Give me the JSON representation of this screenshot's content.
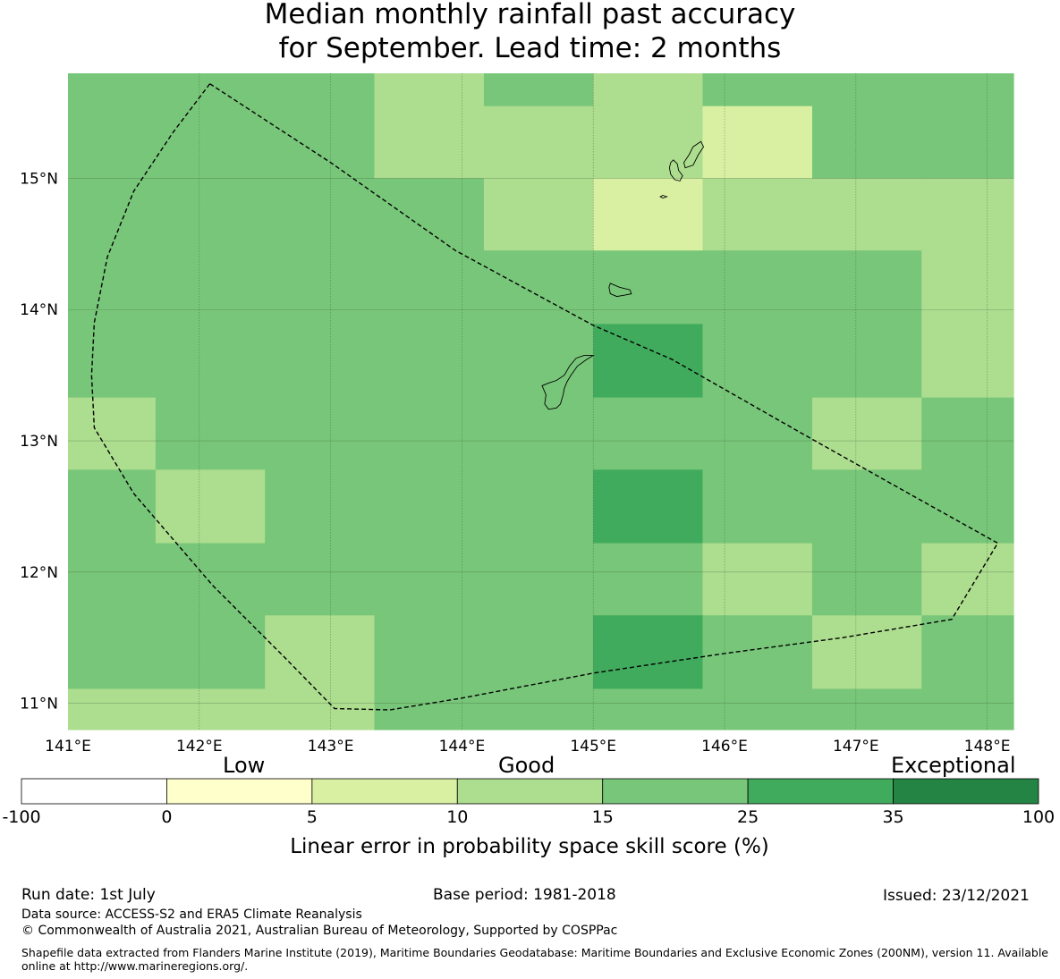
{
  "title": {
    "line1": "Median monthly rainfall past accuracy",
    "line2": "for September. Lead time: 2 months"
  },
  "map": {
    "lon_range": [
      141.0,
      148.2
    ],
    "lat_range": [
      10.8,
      15.8
    ],
    "lon_ticks": [
      {
        "value": 141,
        "label": "141°E"
      },
      {
        "value": 142,
        "label": "142°E"
      },
      {
        "value": 143,
        "label": "143°E"
      },
      {
        "value": 144,
        "label": "144°E"
      },
      {
        "value": 145,
        "label": "145°E"
      },
      {
        "value": 146,
        "label": "146°E"
      },
      {
        "value": 147,
        "label": "147°E"
      },
      {
        "value": 148,
        "label": "148°E"
      }
    ],
    "lat_ticks": [
      {
        "value": 15,
        "label": "15°N"
      },
      {
        "value": 14,
        "label": "14°N"
      },
      {
        "value": 13,
        "label": "13°N"
      },
      {
        "value": 12,
        "label": "12°N"
      },
      {
        "value": 11,
        "label": "11°N"
      }
    ],
    "cell_colors": {
      "c1": "#d9f0a3",
      "c2": "#addd8e",
      "c3": "#78c679",
      "c4": "#41ab5d"
    },
    "grid_lon_edges": [
      141.0,
      141.667,
      142.5,
      143.333,
      144.167,
      145.0,
      145.833,
      146.667,
      147.5,
      148.2
    ],
    "grid_rows": [
      {
        "lat_top": 15.8,
        "lat_bottom": 15.55,
        "cells": [
          "c3",
          "c3",
          "c3",
          "c2",
          "c3",
          "c2",
          "c3",
          "c3",
          "c3"
        ]
      },
      {
        "lat_top": 15.55,
        "lat_bottom": 15.0,
        "cells": [
          "c3",
          "c3",
          "c3",
          "c2",
          "c2",
          "c2",
          "c1",
          "c3",
          "c3"
        ]
      },
      {
        "lat_top": 15.0,
        "lat_bottom": 14.45,
        "cells": [
          "c3",
          "c3",
          "c3",
          "c3",
          "c2",
          "c1",
          "c2",
          "c2",
          "c2"
        ]
      },
      {
        "lat_top": 14.45,
        "lat_bottom": 13.89,
        "cells": [
          "c3",
          "c3",
          "c3",
          "c3",
          "c3",
          "c3",
          "c3",
          "c3",
          "c2"
        ]
      },
      {
        "lat_top": 13.89,
        "lat_bottom": 13.33,
        "cells": [
          "c3",
          "c3",
          "c3",
          "c3",
          "c3",
          "c4",
          "c3",
          "c3",
          "c2"
        ]
      },
      {
        "lat_top": 13.33,
        "lat_bottom": 12.78,
        "cells": [
          "c2",
          "c3",
          "c3",
          "c3",
          "c3",
          "c3",
          "c3",
          "c2",
          "c3"
        ]
      },
      {
        "lat_top": 12.78,
        "lat_bottom": 12.22,
        "cells": [
          "c3",
          "c2",
          "c3",
          "c3",
          "c3",
          "c4",
          "c3",
          "c3",
          "c3"
        ]
      },
      {
        "lat_top": 12.22,
        "lat_bottom": 11.67,
        "cells": [
          "c3",
          "c3",
          "c3",
          "c3",
          "c3",
          "c3",
          "c2",
          "c3",
          "c2"
        ]
      },
      {
        "lat_top": 11.67,
        "lat_bottom": 11.11,
        "cells": [
          "c3",
          "c3",
          "c2",
          "c3",
          "c3",
          "c4",
          "c3",
          "c2",
          "c3"
        ]
      },
      {
        "lat_top": 11.11,
        "lat_bottom": 10.8,
        "cells": [
          "c2",
          "c2",
          "c2",
          "c3",
          "c3",
          "c3",
          "c3",
          "c3",
          "c3"
        ]
      }
    ],
    "eez_boundary": [
      [
        142.08,
        15.72
      ],
      [
        143.0,
        15.12
      ],
      [
        143.95,
        14.45
      ],
      [
        145.0,
        13.88
      ],
      [
        145.6,
        13.62
      ],
      [
        146.6,
        13.05
      ],
      [
        147.4,
        12.6
      ],
      [
        148.08,
        12.22
      ],
      [
        147.73,
        11.64
      ],
      [
        146.9,
        11.5
      ],
      [
        146.0,
        11.38
      ],
      [
        145.0,
        11.23
      ],
      [
        144.0,
        11.04
      ],
      [
        143.45,
        10.95
      ],
      [
        143.03,
        10.96
      ],
      [
        142.65,
        11.35
      ],
      [
        142.1,
        11.9
      ],
      [
        141.5,
        12.6
      ],
      [
        141.2,
        13.1
      ],
      [
        141.18,
        13.5
      ],
      [
        141.2,
        13.9
      ],
      [
        141.3,
        14.4
      ],
      [
        141.5,
        14.9
      ],
      [
        141.8,
        15.35
      ],
      [
        142.08,
        15.72
      ]
    ],
    "islands": [
      [
        [
          145.0,
          13.65
        ],
        [
          144.95,
          13.62
        ],
        [
          144.88,
          13.57
        ],
        [
          144.83,
          13.5
        ],
        [
          144.8,
          13.45
        ],
        [
          144.78,
          13.4
        ],
        [
          144.77,
          13.35
        ],
        [
          144.75,
          13.28
        ],
        [
          144.72,
          13.25
        ],
        [
          144.66,
          13.24
        ],
        [
          144.63,
          13.28
        ],
        [
          144.64,
          13.35
        ],
        [
          144.61,
          13.42
        ],
        [
          144.66,
          13.44
        ],
        [
          144.72,
          13.46
        ],
        [
          144.78,
          13.5
        ],
        [
          144.82,
          13.57
        ],
        [
          144.87,
          13.63
        ],
        [
          144.93,
          13.65
        ],
        [
          145.0,
          13.65
        ]
      ],
      [
        [
          145.13,
          14.2
        ],
        [
          145.2,
          14.17
        ],
        [
          145.28,
          14.15
        ],
        [
          145.29,
          14.12
        ],
        [
          145.24,
          14.11
        ],
        [
          145.18,
          14.1
        ],
        [
          145.13,
          14.12
        ],
        [
          145.12,
          14.17
        ],
        [
          145.13,
          14.2
        ]
      ],
      [
        [
          145.61,
          15.14
        ],
        [
          145.64,
          15.11
        ],
        [
          145.65,
          15.06
        ],
        [
          145.68,
          15.02
        ],
        [
          145.66,
          14.98
        ],
        [
          145.62,
          14.99
        ],
        [
          145.59,
          15.03
        ],
        [
          145.58,
          15.08
        ],
        [
          145.59,
          15.12
        ],
        [
          145.61,
          15.14
        ]
      ],
      [
        [
          145.82,
          15.28
        ],
        [
          145.84,
          15.24
        ],
        [
          145.8,
          15.18
        ],
        [
          145.76,
          15.1
        ],
        [
          145.7,
          15.08
        ],
        [
          145.69,
          15.12
        ],
        [
          145.73,
          15.18
        ],
        [
          145.76,
          15.24
        ],
        [
          145.82,
          15.28
        ]
      ],
      [
        [
          145.53,
          14.87
        ],
        [
          145.56,
          14.86
        ],
        [
          145.53,
          14.85
        ],
        [
          145.51,
          14.86
        ],
        [
          145.53,
          14.87
        ]
      ]
    ]
  },
  "colorbar": {
    "categories": [
      {
        "word": "Low"
      },
      {
        "word": "Good"
      },
      {
        "word": "Exceptional"
      }
    ],
    "bins": [
      {
        "from": "-100",
        "to": "0",
        "color": "#ffffff"
      },
      {
        "from": "0",
        "to": "5",
        "color": "#ffffcc"
      },
      {
        "from": "5",
        "to": "10",
        "color": "#d9f0a3"
      },
      {
        "from": "10",
        "to": "15",
        "color": "#addd8e"
      },
      {
        "from": "15",
        "to": "25",
        "color": "#78c679"
      },
      {
        "from": "25",
        "to": "35",
        "color": "#41ab5d"
      },
      {
        "from": "35",
        "to": "100",
        "color": "#238443"
      }
    ],
    "tick_labels": [
      "-100",
      "0",
      "5",
      "10",
      "15",
      "25",
      "35",
      "100"
    ],
    "label": "Linear error in probability space skill score (%)"
  },
  "footer": {
    "run_date": "Run date: 1st July",
    "base_period": "Base period: 1981-2018",
    "issued": "Issued: 23/12/2021",
    "data_source": "Data source: ACCESS-S2 and ERA5 Climate Reanalysis",
    "copyright": "© Commonwealth of Australia 2021, Australian Bureau of Meteorology, Supported by COSPPac",
    "shapefile_note": "Shapefile data extracted from Flanders Marine Institute (2019), Maritime Boundaries Geodatabase: Maritime Boundaries and Exclusive Economic Zones (200NM), version 11. Available online at http://www.marineregions.org/."
  }
}
